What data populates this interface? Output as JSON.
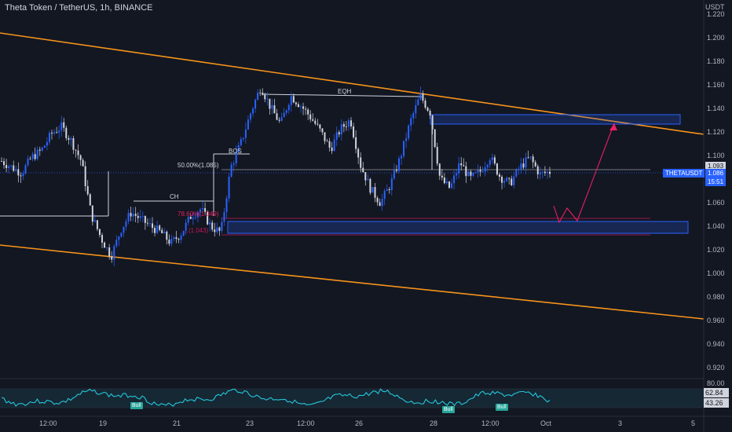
{
  "header": {
    "title": "Theta Token / TetherUS, 1h, BINANCE"
  },
  "price_axis": {
    "currency": "USDT",
    "ticks": [
      "1.220",
      "1.200",
      "1.180",
      "1.160",
      "1.140",
      "1.120",
      "1.100",
      "1.080",
      "1.060",
      "1.040",
      "1.020",
      "1.000",
      "0.980",
      "0.960",
      "0.940",
      "0.920"
    ],
    "price_tag": {
      "symbol": "THETAUSDT",
      "value": "1.086",
      "countdown": "15:51"
    },
    "level_tag": "1.093"
  },
  "time_axis": {
    "labels": [
      "12:00",
      "19",
      "21",
      "23",
      "12:00",
      "26",
      "28",
      "12:00",
      "Oct",
      "3",
      "5"
    ]
  },
  "annotations": {
    "eqh": "EQH",
    "bos": "BOS",
    "ch": "CH",
    "fib_50": "50.00%(1.085)",
    "fib_786": "78.60%(1.049)",
    "fib_lower": "…(1.043)"
  },
  "rsi": {
    "levels": [
      "80.00",
      "62.84",
      "43.26"
    ],
    "bull_labels": [
      "Bull",
      "Bull",
      "Bull"
    ]
  },
  "colors": {
    "background": "#131722",
    "up": "#2962ff",
    "down": "#d1d4dc",
    "channel": "#f7931a",
    "zone": "#2962ff",
    "magenta": "#e91e63",
    "rsi": "#26c6da"
  },
  "chart_data": {
    "type": "candlestick",
    "symbol": "THETAUSDT",
    "interval": "1h",
    "exchange": "BINANCE",
    "last_price": 1.086,
    "ylim": [
      0.91,
      1.225
    ],
    "x_ticks": [
      "12:00",
      "19",
      "21",
      "23",
      "12:00",
      "26",
      "28",
      "12:00",
      "Oct",
      "3",
      "5"
    ],
    "close_path": [
      1.095,
      1.09,
      1.085,
      1.098,
      1.104,
      1.118,
      1.124,
      1.112,
      1.095,
      1.05,
      1.03,
      1.015,
      1.038,
      1.052,
      1.046,
      1.04,
      1.035,
      1.026,
      1.034,
      1.049,
      1.055,
      1.04,
      1.035,
      1.09,
      1.11,
      1.136,
      1.158,
      1.14,
      1.126,
      1.15,
      1.142,
      1.132,
      1.12,
      1.105,
      1.122,
      1.13,
      1.092,
      1.072,
      1.06,
      1.075,
      1.098,
      1.128,
      1.15,
      1.136,
      1.08,
      1.072,
      1.094,
      1.08,
      1.086,
      1.099,
      1.082,
      1.076,
      1.09,
      1.098,
      1.084,
      1.086
    ],
    "rsi_last": [
      62.84,
      43.26
    ]
  }
}
